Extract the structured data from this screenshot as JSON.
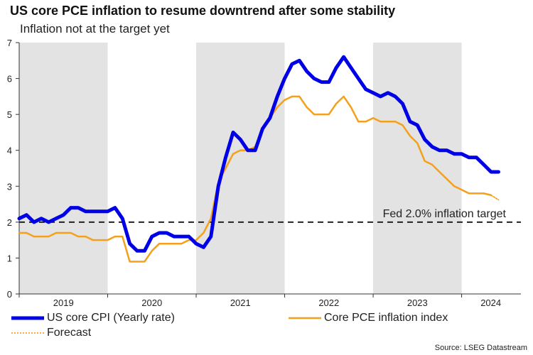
{
  "header": {
    "title": "US core PCE inflation to resume downtrend after some stability",
    "subtitle": "Inflation not at the target yet"
  },
  "footer": {
    "source": "Source: LSEG Datastream"
  },
  "colors": {
    "cpi": "#0000e6",
    "pce": "#f5a01a",
    "shade": "#e3e3e3",
    "target": "#222222"
  },
  "chart_data": {
    "type": "line",
    "title": "US core PCE inflation to resume downtrend after some stability",
    "subtitle": "Inflation not at the target yet",
    "xlabel": "",
    "ylabel": "",
    "xlim": [
      2019.0,
      2024.67
    ],
    "ylim": [
      0,
      7
    ],
    "y_ticks": [
      0,
      1,
      2,
      3,
      4,
      5,
      6,
      7
    ],
    "x_tick_labels": [
      {
        "label": "2019",
        "x": 2019.5
      },
      {
        "label": "2020",
        "x": 2020.5
      },
      {
        "label": "2021",
        "x": 2021.5
      },
      {
        "label": "2022",
        "x": 2022.5
      },
      {
        "label": "2023",
        "x": 2023.5
      },
      {
        "label": "2024",
        "x": 2024.33
      }
    ],
    "shaded_years": [
      [
        2019.0,
        2020.0
      ],
      [
        2021.0,
        2022.0
      ],
      [
        2023.0,
        2024.0
      ]
    ],
    "reference_line": {
      "y": 2.0,
      "label": "Fed 2.0% inflation target",
      "style": "dashed"
    },
    "series": [
      {
        "name": "US core CPI (Yearly rate)",
        "style": "thick",
        "x": [
          2019.0,
          2019.083,
          2019.167,
          2019.25,
          2019.333,
          2019.417,
          2019.5,
          2019.583,
          2019.667,
          2019.75,
          2019.833,
          2019.917,
          2020.0,
          2020.083,
          2020.167,
          2020.25,
          2020.333,
          2020.417,
          2020.5,
          2020.583,
          2020.667,
          2020.75,
          2020.833,
          2020.917,
          2021.0,
          2021.083,
          2021.167,
          2021.25,
          2021.333,
          2021.417,
          2021.5,
          2021.583,
          2021.667,
          2021.75,
          2021.833,
          2021.917,
          2022.0,
          2022.083,
          2022.167,
          2022.25,
          2022.333,
          2022.417,
          2022.5,
          2022.583,
          2022.667,
          2022.75,
          2022.833,
          2022.917,
          2023.0,
          2023.083,
          2023.167,
          2023.25,
          2023.333,
          2023.417,
          2023.5,
          2023.583,
          2023.667,
          2023.75,
          2023.833,
          2023.917,
          2024.0,
          2024.083,
          2024.167,
          2024.25,
          2024.333,
          2024.417
        ],
        "values": [
          2.1,
          2.2,
          2.0,
          2.1,
          2.0,
          2.1,
          2.2,
          2.4,
          2.4,
          2.3,
          2.3,
          2.3,
          2.3,
          2.4,
          2.1,
          1.4,
          1.2,
          1.2,
          1.6,
          1.7,
          1.7,
          1.6,
          1.6,
          1.6,
          1.4,
          1.3,
          1.6,
          3.0,
          3.8,
          4.5,
          4.3,
          4.0,
          4.0,
          4.6,
          4.9,
          5.5,
          6.0,
          6.4,
          6.5,
          6.2,
          6.0,
          5.9,
          5.9,
          6.3,
          6.6,
          6.3,
          6.0,
          5.7,
          5.6,
          5.5,
          5.6,
          5.5,
          5.3,
          4.8,
          4.7,
          4.3,
          4.1,
          4.0,
          4.0,
          3.9,
          3.9,
          3.8,
          3.8,
          3.6,
          3.4,
          3.4
        ]
      },
      {
        "name": "Core PCE inflation index",
        "style": "thin",
        "x": [
          2019.0,
          2019.083,
          2019.167,
          2019.25,
          2019.333,
          2019.417,
          2019.5,
          2019.583,
          2019.667,
          2019.75,
          2019.833,
          2019.917,
          2020.0,
          2020.083,
          2020.167,
          2020.25,
          2020.333,
          2020.417,
          2020.5,
          2020.583,
          2020.667,
          2020.75,
          2020.833,
          2020.917,
          2021.0,
          2021.083,
          2021.167,
          2021.25,
          2021.333,
          2021.417,
          2021.5,
          2021.583,
          2021.667,
          2021.75,
          2021.833,
          2021.917,
          2022.0,
          2022.083,
          2022.167,
          2022.25,
          2022.333,
          2022.417,
          2022.5,
          2022.583,
          2022.667,
          2022.75,
          2022.833,
          2022.917,
          2023.0,
          2023.083,
          2023.167,
          2023.25,
          2023.333,
          2023.417,
          2023.5,
          2023.583,
          2023.667,
          2023.75,
          2023.833,
          2023.917,
          2024.0,
          2024.083,
          2024.167,
          2024.25,
          2024.333
        ],
        "values": [
          1.7,
          1.7,
          1.6,
          1.6,
          1.6,
          1.7,
          1.7,
          1.7,
          1.6,
          1.6,
          1.5,
          1.5,
          1.5,
          1.6,
          1.6,
          0.9,
          0.9,
          0.9,
          1.2,
          1.4,
          1.4,
          1.4,
          1.4,
          1.5,
          1.5,
          1.7,
          2.1,
          3.1,
          3.5,
          3.9,
          4.0,
          4.0,
          4.1,
          4.6,
          4.9,
          5.2,
          5.4,
          5.5,
          5.5,
          5.2,
          5.0,
          5.0,
          5.0,
          5.3,
          5.5,
          5.2,
          4.8,
          4.8,
          4.9,
          4.8,
          4.8,
          4.8,
          4.7,
          4.4,
          4.2,
          3.7,
          3.6,
          3.4,
          3.2,
          3.0,
          2.9,
          2.8,
          2.8,
          2.8,
          2.75
        ]
      },
      {
        "name": "Forecast",
        "style": "dotted",
        "x": [
          2024.333,
          2024.417
        ],
        "values": [
          2.75,
          2.62
        ]
      }
    ]
  }
}
